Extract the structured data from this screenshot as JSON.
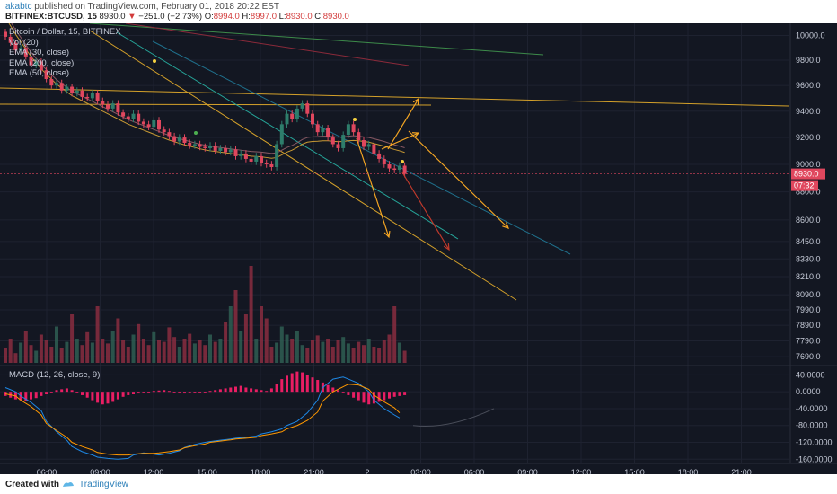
{
  "header": {
    "user": "akabtc",
    "published": "published on TradingView.com, February 01, 2018 20:22 EST",
    "symbol": "BITFINEX:BTCUSD, 15",
    "last": "8930.0",
    "change_arrow": "▼",
    "change": "−251.0 (−2.73%)",
    "ohlc": {
      "o_label": "O:",
      "o": "8994.0",
      "h_label": "H:",
      "h": "8997.0",
      "l_label": "L:",
      "l": "8930.0",
      "c_label": "C:",
      "c": "8930.0"
    }
  },
  "legend": {
    "title": "Bitcoin / Dollar, 15, BITFINEX",
    "vol": "Vol (20)",
    "ema30": "EMA (30, close)",
    "ema200": "EMA (200, close)",
    "ema50": "EMA (50, close)"
  },
  "macd_label": "MACD (12, 26, close, 9)",
  "price_tag": "8930.0",
  "countdown_tag": "07:32",
  "footer": {
    "created": "Created with",
    "brand": "TradingView"
  },
  "colors": {
    "background": "#131722",
    "up": "#2e7d6b",
    "down": "#e0475e",
    "volume_down": "#8a2d3f",
    "volume_up": "#2f5e52",
    "ema30": "#c99a34",
    "ema50": "#8a5a64",
    "macd_line": "#1e88e5",
    "signal_line": "#ff9800",
    "hist": "#e91e63",
    "trend_yellow": "#d4a12a",
    "trend_teal": "#26a69a",
    "arrow_orange": "#f5a623",
    "arrow_red": "#c0392b"
  },
  "chart_data": {
    "type": "candlestick",
    "title": "Bitcoin / Dollar, 15, BITFINEX",
    "price_axis": {
      "ticks": [
        "10000.0",
        "9800.0",
        "9600.0",
        "9400.0",
        "9200.0",
        "9000.0",
        "8800.0",
        "8600.0",
        "8450.0",
        "8330.0",
        "8210.0",
        "8090.0",
        "7990.0",
        "7890.0",
        "7790.0",
        "7690.0"
      ],
      "range": [
        7640,
        10100
      ],
      "scale": "log"
    },
    "macd_axis": {
      "ticks": [
        "40.0000",
        "0.0000",
        "-40.0000",
        "-80.0000",
        "-120.0000",
        "-160.0000"
      ],
      "range": [
        -170,
        60
      ]
    },
    "time_axis": {
      "ticks": [
        "06:00",
        "09:00",
        "12:00",
        "15:00",
        "18:00",
        "21:00",
        "2",
        "03:00",
        "06:00",
        "09:00",
        "12:00",
        "15:00",
        "18:00",
        "21:00"
      ]
    },
    "candles_close": [
      9990,
      9940,
      9880,
      9900,
      9830,
      9760,
      9790,
      9720,
      9650,
      9600,
      9620,
      9560,
      9590,
      9540,
      9560,
      9510,
      9500,
      9540,
      9480,
      9450,
      9420,
      9460,
      9390,
      9360,
      9340,
      9380,
      9320,
      9300,
      9280,
      9330,
      9260,
      9240,
      9210,
      9170,
      9200,
      9160,
      9140,
      9150,
      9130,
      9120,
      9140,
      9100,
      9120,
      9090,
      9110,
      9060,
      9080,
      9040,
      9020,
      9060,
      9010,
      9000,
      8980,
      9150,
      9300,
      9380,
      9340,
      9420,
      9460,
      9380,
      9300,
      9240,
      9270,
      9200,
      9150,
      9120,
      9220,
      9300,
      9240,
      9180,
      9130,
      9150,
      9080,
      9040,
      9000,
      8970,
      8960,
      8990,
      8930
    ],
    "ema30": [
      10150,
      10080,
      10010,
      9950,
      9890,
      9830,
      9780,
      9730,
      9690,
      9650,
      9610,
      9580,
      9550,
      9520,
      9500,
      9480,
      9460,
      9440,
      9420,
      9400,
      9380,
      9360,
      9340,
      9320,
      9300,
      9285,
      9270,
      9255,
      9240,
      9225,
      9210,
      9195,
      9180,
      9168,
      9156,
      9145,
      9135,
      9125,
      9115,
      9107,
      9100,
      9095,
      9090,
      9085,
      9080,
      9075,
      9070,
      9065,
      9060,
      9058,
      9055,
      9050,
      9045,
      9050,
      9070,
      9090,
      9105,
      9125,
      9150,
      9165,
      9170,
      9172,
      9175,
      9175,
      9172,
      9168,
      9170,
      9175,
      9178,
      9175,
      9170,
      9165,
      9155,
      9145,
      9135,
      9122,
      9110,
      9100,
      9088
    ]
  }
}
